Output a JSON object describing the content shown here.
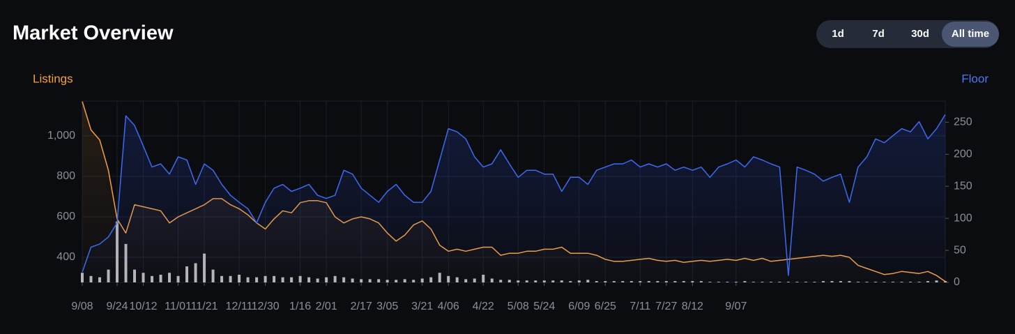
{
  "header": {
    "title": "Market Overview"
  },
  "buttons": [
    "1d",
    "7d",
    "30d",
    "All time"
  ],
  "active_button": 3,
  "chart_data": {
    "type": "line",
    "categories": [
      "9/08",
      null,
      null,
      null,
      "9/24",
      null,
      null,
      "10/12",
      null,
      null,
      null,
      "11/01",
      null,
      null,
      "11/21",
      null,
      null,
      null,
      "12/11",
      null,
      null,
      "12/30",
      null,
      null,
      null,
      "1/16",
      null,
      null,
      "2/01",
      null,
      null,
      null,
      "2/17",
      null,
      null,
      "3/05",
      null,
      null,
      null,
      "3/21",
      null,
      null,
      "4/06",
      null,
      null,
      null,
      "4/22",
      null,
      null,
      null,
      "5/08",
      null,
      null,
      "5/24",
      null,
      null,
      null,
      "6/09",
      null,
      null,
      "6/25",
      null,
      null,
      null,
      "7/11",
      null,
      null,
      "7/27",
      null,
      null,
      "8/12",
      null,
      null,
      null,
      null,
      "9/07",
      null,
      null,
      null,
      null,
      null,
      null,
      null,
      null,
      null,
      null,
      null,
      null,
      null,
      null,
      null,
      null,
      null,
      null,
      null,
      null,
      null,
      null,
      null,
      null
    ],
    "series": [
      {
        "name": "Listings",
        "color": "#f5a142",
        "values": [
          1170,
          1030,
          980,
          830,
          590,
          520,
          660,
          650,
          640,
          630,
          570,
          600,
          620,
          640,
          660,
          690,
          690,
          660,
          640,
          610,
          570,
          540,
          590,
          630,
          620,
          670,
          680,
          680,
          670,
          600,
          570,
          590,
          600,
          590,
          570,
          520,
          480,
          510,
          560,
          580,
          540,
          460,
          430,
          440,
          430,
          440,
          450,
          450,
          410,
          420,
          420,
          430,
          430,
          440,
          440,
          450,
          420,
          420,
          420,
          410,
          390,
          380,
          380,
          385,
          390,
          395,
          385,
          380,
          385,
          375,
          380,
          385,
          380,
          385,
          390,
          385,
          395,
          385,
          395,
          380,
          385,
          390,
          395,
          400,
          405,
          410,
          405,
          410,
          400,
          360,
          345,
          330,
          315,
          320,
          330,
          325,
          320,
          330,
          310,
          280
        ]
      },
      {
        "name": "Floor",
        "color": "#3d6af2",
        "axis": "y2",
        "values": [
          16,
          55,
          60,
          71,
          93,
          260,
          245,
          213,
          180,
          185,
          169,
          196,
          191,
          153,
          185,
          175,
          153,
          136,
          125,
          115,
          93,
          125,
          147,
          153,
          142,
          147,
          153,
          136,
          131,
          136,
          175,
          169,
          147,
          136,
          125,
          142,
          153,
          136,
          125,
          125,
          142,
          191,
          240,
          235,
          224,
          196,
          180,
          185,
          207,
          185,
          164,
          175,
          175,
          169,
          169,
          142,
          164,
          164,
          153,
          175,
          180,
          185,
          185,
          191,
          180,
          185,
          180,
          185,
          175,
          180,
          175,
          180,
          164,
          180,
          185,
          191,
          180,
          196,
          191,
          185,
          180,
          11,
          180,
          175,
          169,
          158,
          164,
          169,
          125,
          180,
          196,
          224,
          218,
          229,
          240,
          235,
          251,
          224,
          240,
          262
        ]
      },
      {
        "type": "bar",
        "color": "#b8b8b8",
        "axis": "y2",
        "values": [
          15,
          10,
          8,
          20,
          95,
          60,
          20,
          15,
          10,
          12,
          15,
          10,
          25,
          30,
          45,
          20,
          10,
          10,
          12,
          8,
          8,
          10,
          10,
          8,
          8,
          10,
          8,
          6,
          8,
          10,
          8,
          6,
          5,
          5,
          5,
          4,
          4,
          5,
          4,
          6,
          8,
          15,
          10,
          8,
          5,
          6,
          12,
          6,
          4,
          4,
          3,
          3,
          3,
          3,
          3,
          3,
          2,
          3,
          4,
          2,
          2,
          2,
          2,
          2,
          2,
          2,
          2,
          2,
          2,
          2,
          2,
          2,
          1,
          1,
          1,
          1,
          2,
          1,
          1,
          1,
          1,
          1,
          1,
          1,
          1,
          2,
          2,
          2,
          2,
          1,
          1,
          1,
          1,
          1,
          1,
          1,
          1,
          2,
          3,
          2
        ]
      }
    ],
    "ylim": [
      276,
      1172
    ],
    "yticks": [
      400,
      600,
      800,
      {
        "value": 1000,
        "label": "1,000"
      }
    ],
    "y2lim": [
      0,
      283
    ],
    "y2ticks": [
      0,
      50,
      100,
      150,
      200,
      250
    ],
    "grid": true
  }
}
